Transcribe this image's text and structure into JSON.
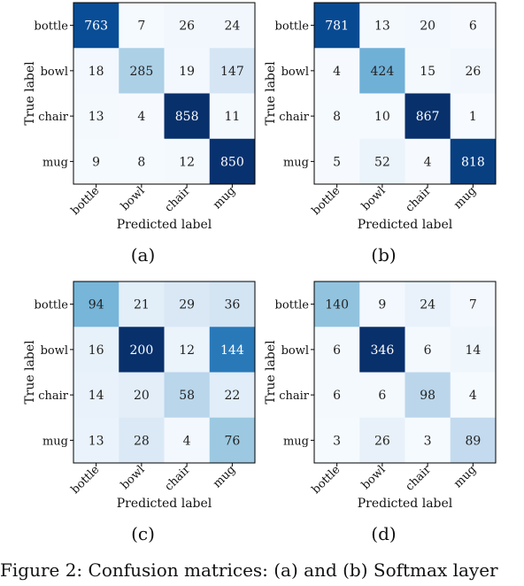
{
  "chart_data": [
    {
      "type": "heatmap",
      "panel_label": "(a)",
      "xlabel": "Predicted label",
      "ylabel": "True label",
      "x_categories": [
        "bottle",
        "bowl",
        "chair",
        "mug"
      ],
      "y_categories": [
        "bottle",
        "bowl",
        "chair",
        "mug"
      ],
      "values": [
        [
          763,
          7,
          26,
          24
        ],
        [
          18,
          285,
          19,
          147
        ],
        [
          13,
          4,
          858,
          11
        ],
        [
          9,
          8,
          12,
          850
        ]
      ],
      "colormap": "Blues"
    },
    {
      "type": "heatmap",
      "panel_label": "(b)",
      "xlabel": "Predicted label",
      "ylabel": "True label",
      "x_categories": [
        "bottle",
        "bowl",
        "chair",
        "mug"
      ],
      "y_categories": [
        "bottle",
        "bowl",
        "chair",
        "mug"
      ],
      "values": [
        [
          781,
          13,
          20,
          6
        ],
        [
          4,
          424,
          15,
          26
        ],
        [
          8,
          10,
          867,
          1
        ],
        [
          5,
          52,
          4,
          818
        ]
      ],
      "colormap": "Blues"
    },
    {
      "type": "heatmap",
      "panel_label": "(c)",
      "xlabel": "Predicted label",
      "ylabel": "True label",
      "x_categories": [
        "bottle",
        "bowl",
        "chair",
        "mug"
      ],
      "y_categories": [
        "bottle",
        "bowl",
        "chair",
        "mug"
      ],
      "values": [
        [
          94,
          21,
          29,
          36
        ],
        [
          16,
          200,
          12,
          144
        ],
        [
          14,
          20,
          58,
          22
        ],
        [
          13,
          28,
          4,
          76
        ]
      ],
      "colormap": "Blues"
    },
    {
      "type": "heatmap",
      "panel_label": "(d)",
      "xlabel": "Predicted label",
      "ylabel": "True label",
      "x_categories": [
        "bottle",
        "bowl",
        "chair",
        "mug"
      ],
      "y_categories": [
        "bottle",
        "bowl",
        "chair",
        "mug"
      ],
      "values": [
        [
          140,
          9,
          24,
          7
        ],
        [
          6,
          346,
          6,
          14
        ],
        [
          6,
          6,
          98,
          4
        ],
        [
          3,
          26,
          3,
          89
        ]
      ],
      "colormap": "Blues"
    }
  ],
  "caption": "Figure 2: Confusion matrices: (a) and (b) Softmax layer"
}
